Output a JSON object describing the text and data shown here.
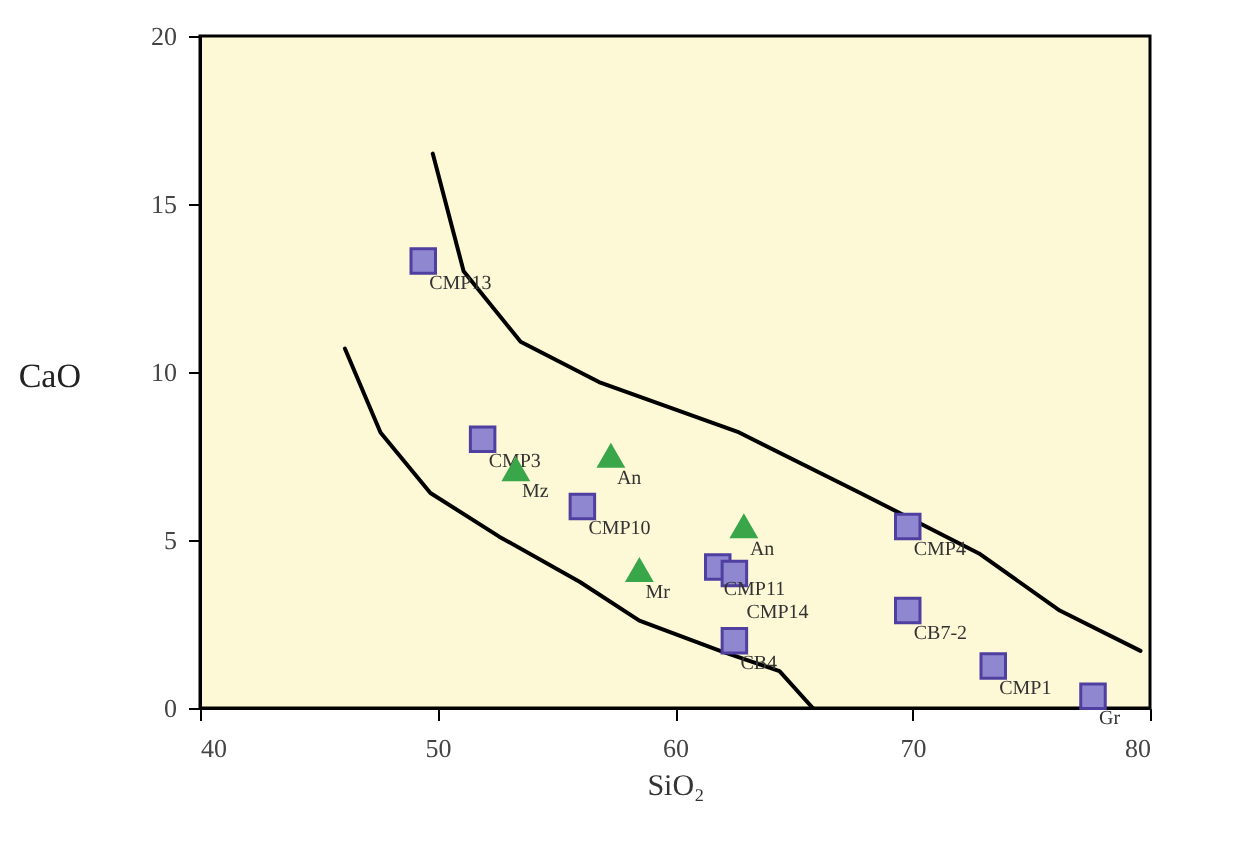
{
  "chart_data": {
    "type": "scatter",
    "xlabel": "SiO₂",
    "ylabel": "CaO",
    "xlim": [
      40,
      80
    ],
    "xticks": [
      40,
      50,
      60,
      70,
      80
    ],
    "ylim": [
      0,
      20
    ],
    "yticks": [
      0,
      5,
      10,
      15,
      20
    ],
    "grid": false,
    "series": [
      {
        "type": "line",
        "color": "#000000",
        "x": [
          49.8,
          51.1,
          53.5,
          56.8,
          62.7,
          67.8,
          72.8,
          76.2,
          79.6
        ],
        "values": [
          16.5,
          13,
          10.9,
          9.7,
          8.2,
          6.4,
          4.6,
          2.9,
          1.7
        ]
      },
      {
        "type": "line",
        "color": "#000000",
        "x": [
          46.1,
          47.6,
          49.7,
          52.6,
          56,
          58.5,
          61.9,
          64.4,
          65.8
        ],
        "values": [
          10.7,
          8.2,
          6.4,
          5.1,
          3.75,
          2.6,
          1.7,
          1.1,
          0
        ]
      },
      {
        "marker": "square",
        "color": "#8f88d0",
        "x": [
          49.4,
          51.9,
          56.1,
          61.8,
          62.5,
          62.5,
          69.8,
          69.8,
          73.4,
          77.6
        ],
        "values": [
          13.3,
          8,
          6,
          4.2,
          4,
          2,
          5.4,
          2.9,
          1.25,
          0.35
        ],
        "value_labels": [
          "CMP13",
          "CMP3",
          "CMP10",
          "CMP11",
          "CMP14",
          "CB4",
          "CMP4",
          "CB7-2",
          "CMP1",
          "Gr"
        ]
      },
      {
        "marker": "triangle",
        "color": "#3aa64a",
        "x": [
          57.3,
          62.9
        ],
        "values": [
          7.5,
          5.4
        ],
        "value_labels": [
          "An",
          "An"
        ]
      },
      {
        "marker": "triangle",
        "color": "#3aa64a",
        "x": [
          53.3,
          58.5
        ],
        "values": [
          7.1,
          4.1
        ],
        "value_labels": [
          "Mz",
          "Mr"
        ]
      }
    ]
  }
}
